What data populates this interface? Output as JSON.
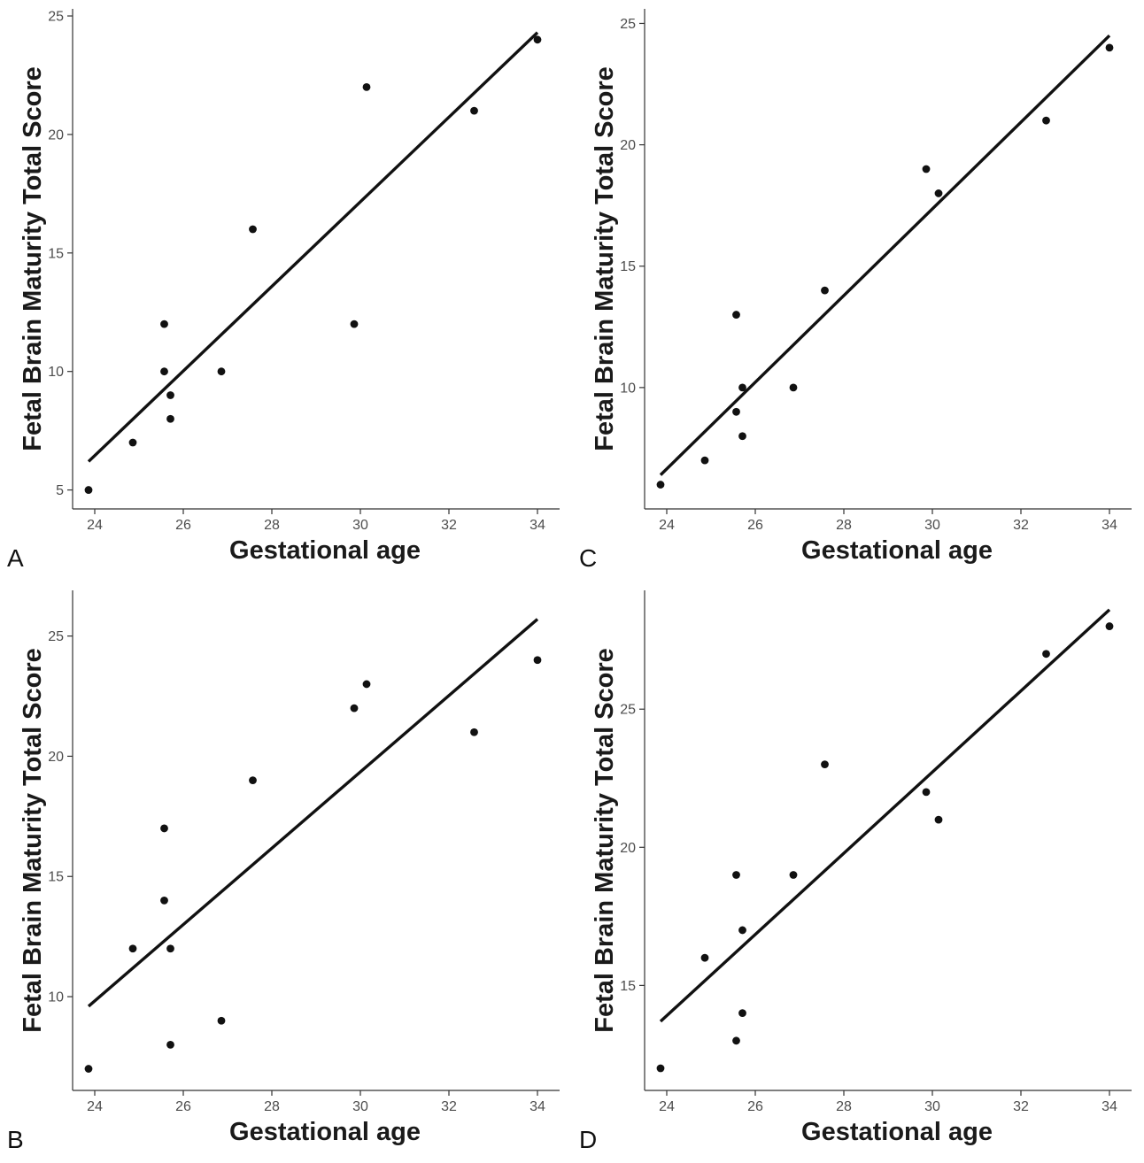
{
  "chart_data": [
    {
      "type": "scatter",
      "panel_label": "A",
      "xlabel": "Gestational age",
      "ylabel": "Fetal Brain Maturity Total Score",
      "xlim": [
        23.5,
        34.5
      ],
      "ylim": [
        4.2,
        25.3
      ],
      "x_ticks": [
        24,
        26,
        28,
        30,
        32,
        34
      ],
      "y_ticks": [
        5,
        10,
        15,
        20,
        25
      ],
      "grid": false,
      "points": [
        {
          "x": 23.86,
          "y": 5
        },
        {
          "x": 24.86,
          "y": 7
        },
        {
          "x": 25.57,
          "y": 12
        },
        {
          "x": 25.57,
          "y": 10
        },
        {
          "x": 25.71,
          "y": 9
        },
        {
          "x": 25.71,
          "y": 8
        },
        {
          "x": 26.86,
          "y": 10
        },
        {
          "x": 27.57,
          "y": 16
        },
        {
          "x": 29.86,
          "y": 12
        },
        {
          "x": 30.14,
          "y": 22
        },
        {
          "x": 32.57,
          "y": 21
        },
        {
          "x": 34.0,
          "y": 24
        }
      ],
      "fit_line": {
        "x": [
          23.86,
          34.0
        ],
        "y": [
          6.2,
          24.3
        ]
      }
    },
    {
      "type": "scatter",
      "panel_label": "C",
      "xlabel": "Gestational age",
      "ylabel": "Fetal Brain Maturity Total Score",
      "xlim": [
        23.5,
        34.5
      ],
      "ylim": [
        5.0,
        25.6
      ],
      "x_ticks": [
        24,
        26,
        28,
        30,
        32,
        34
      ],
      "y_ticks": [
        10,
        15,
        20,
        25
      ],
      "grid": false,
      "points": [
        {
          "x": 23.86,
          "y": 6
        },
        {
          "x": 24.86,
          "y": 7
        },
        {
          "x": 25.57,
          "y": 13
        },
        {
          "x": 25.57,
          "y": 9
        },
        {
          "x": 25.71,
          "y": 10
        },
        {
          "x": 25.71,
          "y": 8
        },
        {
          "x": 26.86,
          "y": 10
        },
        {
          "x": 27.57,
          "y": 14
        },
        {
          "x": 29.86,
          "y": 19
        },
        {
          "x": 30.14,
          "y": 18
        },
        {
          "x": 32.57,
          "y": 21
        },
        {
          "x": 34.0,
          "y": 24
        }
      ],
      "fit_line": {
        "x": [
          23.86,
          34.0
        ],
        "y": [
          6.4,
          24.5
        ]
      }
    },
    {
      "type": "scatter",
      "panel_label": "B",
      "xlabel": "Gestational age",
      "ylabel": "Fetal Brain Maturity Total Score",
      "xlim": [
        23.5,
        34.5
      ],
      "ylim": [
        6.1,
        26.9
      ],
      "x_ticks": [
        24,
        26,
        28,
        30,
        32,
        34
      ],
      "y_ticks": [
        10,
        15,
        20,
        25
      ],
      "grid": false,
      "points": [
        {
          "x": 23.86,
          "y": 7
        },
        {
          "x": 24.86,
          "y": 12
        },
        {
          "x": 25.57,
          "y": 17
        },
        {
          "x": 25.57,
          "y": 14
        },
        {
          "x": 25.71,
          "y": 12
        },
        {
          "x": 25.71,
          "y": 8
        },
        {
          "x": 26.86,
          "y": 9
        },
        {
          "x": 27.57,
          "y": 19
        },
        {
          "x": 29.86,
          "y": 22
        },
        {
          "x": 30.14,
          "y": 23
        },
        {
          "x": 32.57,
          "y": 21
        },
        {
          "x": 34.0,
          "y": 24
        }
      ],
      "fit_line": {
        "x": [
          23.86,
          34.0
        ],
        "y": [
          9.6,
          25.7
        ]
      }
    },
    {
      "type": "scatter",
      "panel_label": "D",
      "xlabel": "Gestational age",
      "ylabel": "Fetal Brain Maturity Total Score",
      "xlim": [
        23.5,
        34.5
      ],
      "ylim": [
        11.2,
        29.3
      ],
      "x_ticks": [
        24,
        26,
        28,
        30,
        32,
        34
      ],
      "y_ticks": [
        15,
        20,
        25
      ],
      "grid": false,
      "points": [
        {
          "x": 23.86,
          "y": 12
        },
        {
          "x": 24.86,
          "y": 16
        },
        {
          "x": 25.57,
          "y": 19
        },
        {
          "x": 25.57,
          "y": 13
        },
        {
          "x": 25.71,
          "y": 17
        },
        {
          "x": 25.71,
          "y": 14
        },
        {
          "x": 26.86,
          "y": 19
        },
        {
          "x": 27.57,
          "y": 23
        },
        {
          "x": 29.86,
          "y": 22
        },
        {
          "x": 30.14,
          "y": 21
        },
        {
          "x": 32.57,
          "y": 27
        },
        {
          "x": 34.0,
          "y": 28
        }
      ],
      "fit_line": {
        "x": [
          23.86,
          34.0
        ],
        "y": [
          13.7,
          28.6
        ]
      }
    }
  ]
}
